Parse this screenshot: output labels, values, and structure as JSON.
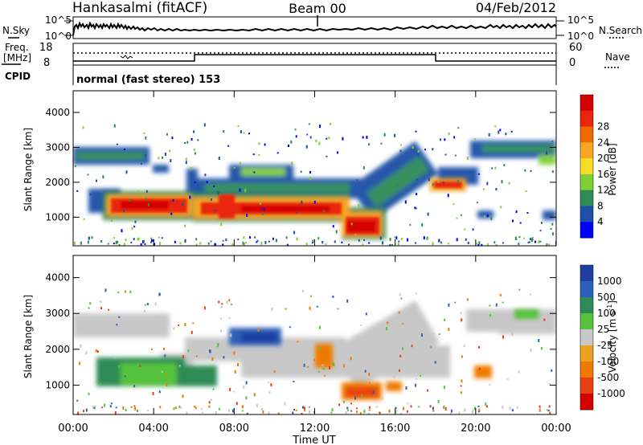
{
  "header": {
    "station": "Hankasalmi (fitACF)",
    "beam": "Beam 00",
    "date": "04/Feb/2012"
  },
  "noise_panel": {
    "left_label": "N.Sky",
    "right_label": "N.Search",
    "left_ticks": [
      "10^5",
      "10^0"
    ],
    "right_ticks": [
      "10^5",
      "10^0"
    ]
  },
  "freq_panel": {
    "label_line1": "Freq.",
    "label_line2": "[MHz]",
    "left_ticks": [
      "18",
      "8"
    ],
    "right_ticks": [
      "60",
      "0"
    ],
    "right_label": "Nave"
  },
  "cpid": {
    "label": "CPID",
    "text": "normal (fast stereo) 153"
  },
  "colors": {
    "power": [
      "#0000ff",
      "#1f4fa6",
      "#2e8b57",
      "#7fcf35",
      "#f7dc23",
      "#f5a623",
      "#f06a00",
      "#e8250e",
      "#d40000"
    ],
    "velocity": [
      "#1f3f9f",
      "#2e5fb8",
      "#2e8b57",
      "#55c23a",
      "#c8c8c8",
      "#f0a020",
      "#ef7a00",
      "#e84010",
      "#d40000"
    ]
  },
  "chart_data": [
    {
      "type": "heatmap",
      "name": "power",
      "ylabel": "Slant Range [km]",
      "yticks": [
        "1000",
        "2000",
        "3000",
        "4000"
      ],
      "ylim": [
        180,
        4620
      ],
      "colorbar_label": "Power [dB]",
      "colorbar_ticks": [
        "4",
        "8",
        "12",
        "16",
        "20",
        "24",
        "28"
      ],
      "features": [
        {
          "from_ut": 1.0,
          "to_ut": 5.8,
          "range_km": 1150,
          "power_db": 28
        },
        {
          "from_ut": 6.0,
          "to_ut": 13.8,
          "range_km": 1100,
          "power_db": 26
        },
        {
          "from_ut": 13.9,
          "to_ut": 14.9,
          "range_km": 700,
          "power_db": 28
        },
        {
          "from_ut": 0.0,
          "to_ut": 3.3,
          "range_km": 2650,
          "power_db": 12
        },
        {
          "from_ut": 7.8,
          "to_ut": 11.8,
          "range_km": 2250,
          "power_db": 10
        },
        {
          "from_ut": 14.2,
          "to_ut": 18.5,
          "range_km": 2300,
          "power_db": 12
        },
        {
          "from_ut": 18.2,
          "to_ut": 19.3,
          "range_km": 1850,
          "power_db": 24
        },
        {
          "from_ut": 19.2,
          "to_ut": 24.0,
          "range_km": 2800,
          "power_db": 12
        }
      ]
    },
    {
      "type": "heatmap",
      "name": "velocity",
      "ylabel": "Slant Range [km]",
      "yticks": [
        "1000",
        "2000",
        "3000",
        "4000"
      ],
      "ylim": [
        180,
        4620
      ],
      "colorbar_label": "Velocity [m s",
      "colorbar_label_sup": "-1",
      "colorbar_label_end": "]",
      "colorbar_ticks": [
        "1000",
        "500",
        "100",
        "25",
        "-25",
        "-100",
        "-500",
        "-1000"
      ],
      "features": [
        {
          "from_ut": 1.0,
          "to_ut": 5.6,
          "range_km": 1200,
          "velocity_ms": 300
        },
        {
          "from_ut": 6.0,
          "to_ut": 18.0,
          "range_km": 1450,
          "velocity_ms": 0
        },
        {
          "from_ut": 13.9,
          "to_ut": 14.9,
          "range_km": 700,
          "velocity_ms": -300
        },
        {
          "from_ut": 8.0,
          "to_ut": 10.0,
          "range_km": 2300,
          "velocity_ms": 600
        },
        {
          "from_ut": 0.0,
          "to_ut": 24.0,
          "range_km": 2600,
          "velocity_ms": 0
        }
      ],
      "xlabel": "Time UT",
      "xticks": [
        "00:00",
        "04:00",
        "08:00",
        "12:00",
        "16:00",
        "20:00",
        "00:00"
      ],
      "xlim": [
        0,
        24
      ]
    }
  ]
}
